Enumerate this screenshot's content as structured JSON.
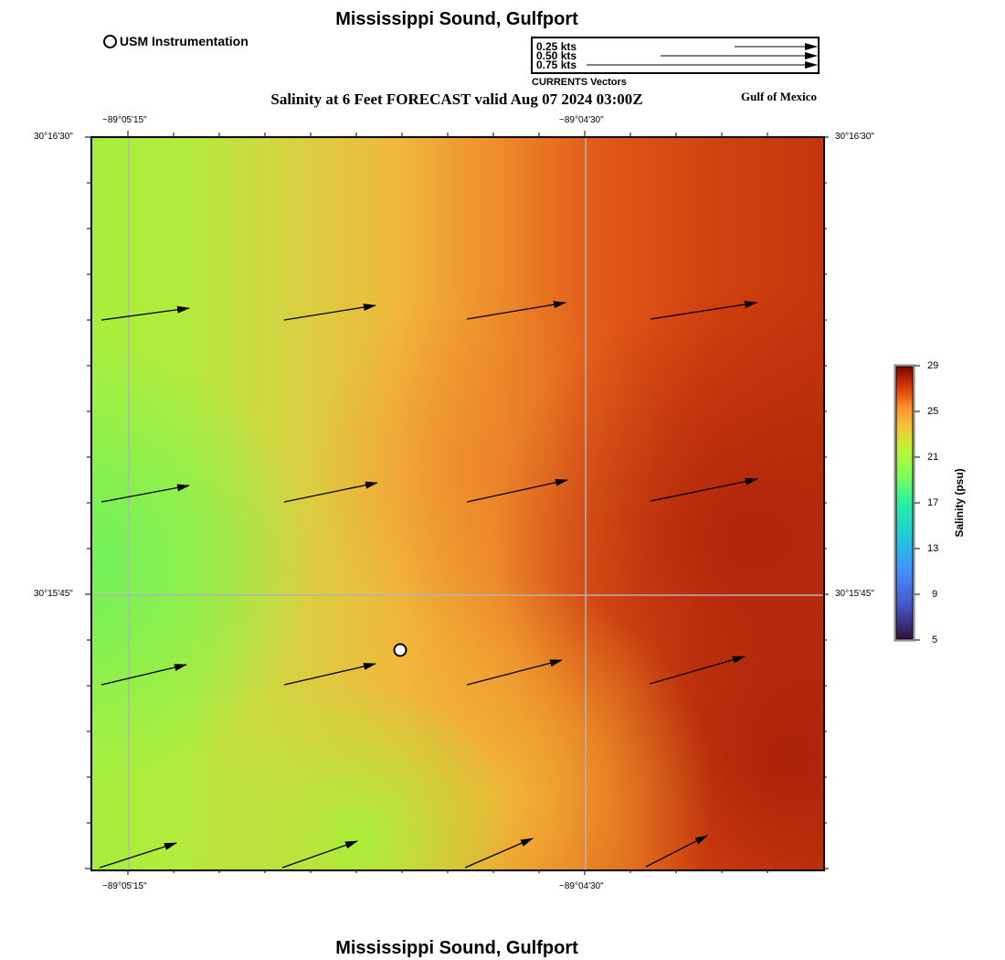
{
  "header": {
    "title": "Mississippi Sound, Gulfport",
    "subtitle": "Salinity at 6 Feet FORECAST valid Aug 07 2024 03:00Z",
    "region": "Gulf of Mexico",
    "station_legend": "USM Instrumentation"
  },
  "vector_legend": {
    "caption": "CURRENTS Vectors",
    "entries": [
      {
        "label": "0.25 kts",
        "speed_kts": 0.25
      },
      {
        "label": "0.50 kts",
        "speed_kts": 0.5
      },
      {
        "label": "0.75 kts",
        "speed_kts": 0.75
      }
    ]
  },
  "map": {
    "lon_labels": [
      "−89°05'15\"",
      "−89°04'30\""
    ],
    "lat_labels": [
      "30°16'30\"",
      "30°15'45\""
    ]
  },
  "colorbar": {
    "title": "Salinity (psu)",
    "ticks": [
      "29",
      "25",
      "21",
      "17",
      "13",
      "9",
      "5"
    ],
    "min": 5,
    "max": 29
  },
  "footer": {
    "title": "Mississippi Sound, Gulfport"
  }
}
